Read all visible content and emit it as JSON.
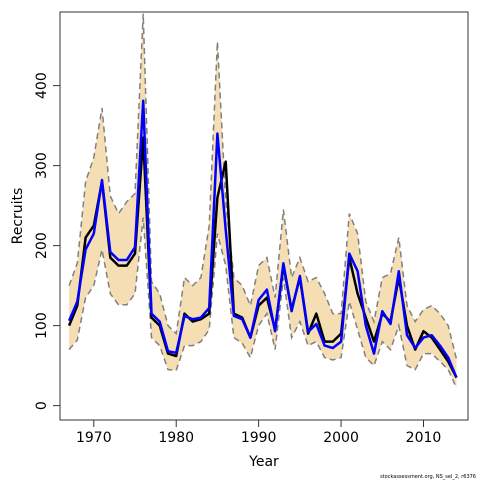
{
  "chart_data": {
    "type": "line",
    "title": "",
    "xlabel": "Year",
    "ylabel": "Recruits",
    "xlim": [
      1965.9,
      2015.4
    ],
    "ylim": [
      -18,
      492
    ],
    "x_ticks": [
      1970,
      1980,
      1990,
      2000,
      2010
    ],
    "y_ticks": [
      0,
      100,
      200,
      300,
      400
    ],
    "grid": false,
    "legend": "none",
    "x": [
      1967,
      1968,
      1969,
      1970,
      1971,
      1972,
      1973,
      1974,
      1975,
      1976,
      1977,
      1978,
      1979,
      1980,
      1981,
      1982,
      1983,
      1984,
      1985,
      1986,
      1987,
      1988,
      1989,
      1990,
      1991,
      1992,
      1993,
      1994,
      1995,
      1996,
      1997,
      1998,
      1999,
      2000,
      2001,
      2002,
      2003,
      2004,
      2005,
      2006,
      2007,
      2008,
      2009,
      2010,
      2011,
      2012,
      2013,
      2014
    ],
    "band": {
      "lower": [
        70,
        82,
        135,
        150,
        195,
        140,
        126,
        126,
        140,
        235,
        85,
        75,
        45,
        44,
        75,
        75,
        80,
        95,
        215,
        175,
        85,
        78,
        60,
        100,
        115,
        70,
        160,
        85,
        105,
        75,
        80,
        60,
        57,
        60,
        130,
        95,
        60,
        50,
        80,
        70,
        100,
        50,
        45,
        65,
        65,
        55,
        45,
        22
      ],
      "upper": [
        150,
        178,
        280,
        310,
        372,
        262,
        240,
        255,
        265,
        490,
        155,
        140,
        100,
        90,
        160,
        150,
        160,
        225,
        455,
        255,
        160,
        150,
        125,
        175,
        185,
        135,
        245,
        160,
        185,
        155,
        160,
        140,
        115,
        115,
        240,
        215,
        130,
        105,
        160,
        165,
        210,
        125,
        105,
        120,
        125,
        115,
        100,
        58
      ],
      "color": "#f5deb3",
      "line_color": "#808080"
    },
    "series": [
      {
        "values": [
          100,
          125,
          210,
          225,
          280,
          185,
          175,
          175,
          190,
          335,
          110,
          100,
          65,
          62,
          115,
          105,
          108,
          115,
          260,
          305,
          115,
          110,
          85,
          125,
          135,
          95,
          175,
          120,
          160,
          90,
          115,
          80,
          80,
          90,
          185,
          140,
          110,
          80,
          115,
          105,
          160,
          100,
          70,
          93,
          85,
          70,
          55,
          35
        ],
        "color": "#000000"
      },
      {
        "values": [
          106,
          130,
          195,
          215,
          282,
          192,
          182,
          182,
          198,
          381,
          115,
          105,
          68,
          66,
          112,
          108,
          110,
          122,
          340,
          220,
          112,
          108,
          85,
          132,
          145,
          93,
          178,
          118,
          162,
          92,
          102,
          75,
          72,
          80,
          190,
          168,
          100,
          65,
          118,
          102,
          168,
          88,
          72,
          85,
          88,
          75,
          60,
          35
        ],
        "color": "#0000ff"
      }
    ]
  },
  "footer_text": "stockassessment.org, NS_sel_2, r6376"
}
